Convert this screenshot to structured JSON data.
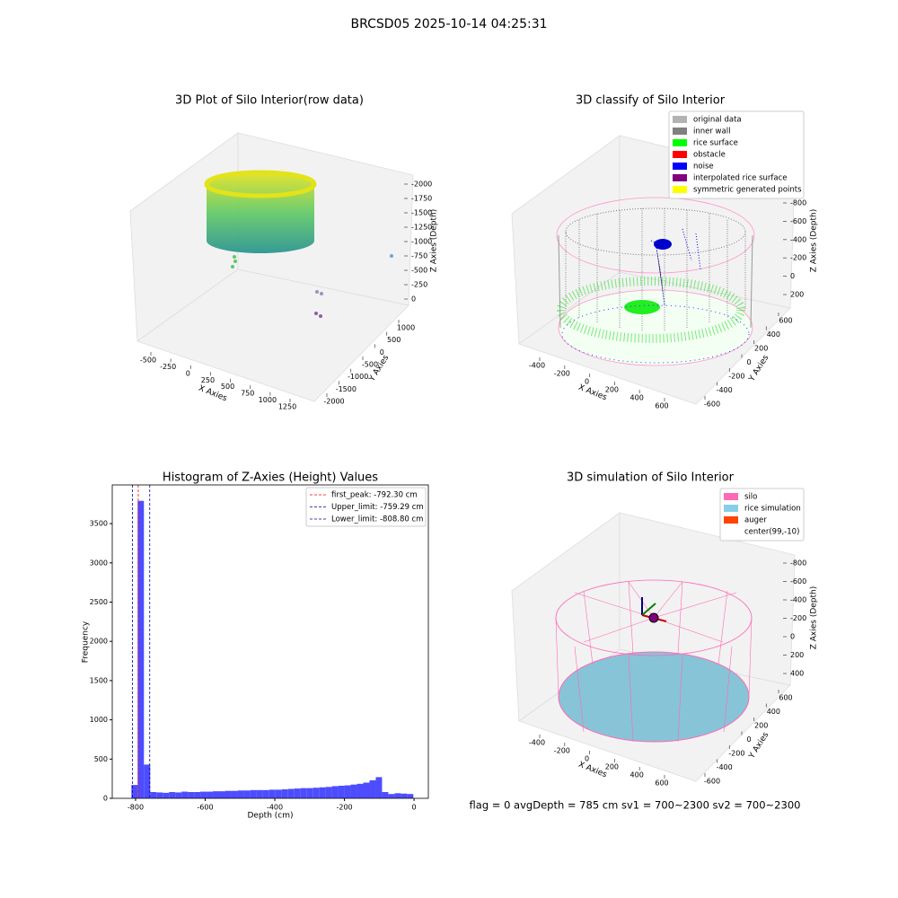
{
  "title": "BRCSD05 2025-10-14 04:25:31",
  "footer": "flag = 0     avgDepth = 785 cm  sv1 = 700~2300  sv2 = 700~2300",
  "chart_data": [
    {
      "type": "scatter3d",
      "title": "3D Plot of Silo Interior(row data)",
      "xlabel": "X Axies",
      "ylabel": "Y Axies",
      "zlabel": "Z Axies (Depth)",
      "xticks": [
        -500,
        -250,
        0,
        250,
        500,
        750,
        1000,
        1250
      ],
      "yticks": [
        -2000,
        -1500,
        -1000,
        -500,
        0,
        500,
        1000
      ],
      "zticks": [
        -2000,
        -1750,
        -1500,
        -1250,
        -1000,
        -750,
        -500,
        -250,
        0
      ]
    },
    {
      "type": "scatter3d",
      "title": "3D classify of Silo Interior",
      "xlabel": "X Axies",
      "ylabel": "Y Axies",
      "zlabel": "Z Axies (Depth)",
      "xticks": [
        -400,
        -200,
        0,
        200,
        400,
        600
      ],
      "yticks": [
        -600,
        -400,
        -200,
        0,
        200,
        400,
        600
      ],
      "zticks": [
        -800,
        -600,
        -400,
        -200,
        0,
        200
      ],
      "legend": [
        {
          "name": "original data",
          "color": "#b3b3b3"
        },
        {
          "name": "inner wall",
          "color": "#808080"
        },
        {
          "name": "rice surface",
          "color": "#00ff00"
        },
        {
          "name": "obstacle",
          "color": "#ff0000"
        },
        {
          "name": "noise",
          "color": "#0000ff"
        },
        {
          "name": "interpolated rice surface",
          "color": "#800080"
        },
        {
          "name": "symmetric generated points",
          "color": "#ffff00"
        }
      ]
    },
    {
      "type": "histogram",
      "title": "Histogram of Z-Axies (Height) Values",
      "xlabel": "Depth (cm)",
      "ylabel": "Frequency",
      "color": "#4d4dff",
      "bins": [
        -812,
        -794,
        -776,
        -758,
        -740,
        -722,
        -704,
        -686,
        -668,
        -650,
        -632,
        -614,
        -596,
        -578,
        -560,
        -542,
        -524,
        -506,
        -488,
        -470,
        -452,
        -434,
        -416,
        -398,
        -380,
        -362,
        -344,
        -326,
        -308,
        -290,
        -272,
        -254,
        -236,
        -218,
        -200,
        -182,
        -164,
        -146,
        -128,
        -110,
        -92,
        -74,
        -56,
        -38,
        -20,
        -2
      ],
      "values": [
        170,
        3790,
        430,
        80,
        75,
        70,
        80,
        75,
        85,
        80,
        80,
        85,
        85,
        90,
        90,
        95,
        95,
        100,
        100,
        105,
        105,
        105,
        110,
        110,
        115,
        120,
        125,
        130,
        130,
        135,
        140,
        145,
        155,
        160,
        165,
        175,
        185,
        200,
        230,
        270,
        80,
        55,
        65,
        60,
        55
      ],
      "xlim": [
        -867,
        41
      ],
      "ylim": [
        0,
        3993
      ],
      "xticks": [
        -800,
        -600,
        -400,
        -200,
        0
      ],
      "yticks": [
        0,
        500,
        1000,
        1500,
        2000,
        2500,
        3000,
        3500
      ],
      "lines": [
        {
          "name": "first_peak: -792.30 cm",
          "value": -792.3,
          "color": "#ff0000"
        },
        {
          "name": "Upper_limit: -759.29 cm",
          "value": -759.29,
          "color": "#0000aa"
        },
        {
          "name": "Lower_limit: -808.80 cm",
          "value": -808.8,
          "color": "#0000aa"
        }
      ]
    },
    {
      "type": "surface3d",
      "title": "3D simulation of Silo Interior",
      "xlabel": "X Axies",
      "ylabel": "Y Axies",
      "zlabel": "Z Axies (Depth)",
      "xticks": [
        -400,
        -200,
        0,
        200,
        400,
        600
      ],
      "yticks": [
        -600,
        -400,
        -200,
        0,
        200,
        400,
        600
      ],
      "zticks": [
        -800,
        -600,
        -400,
        -200,
        0,
        200,
        400
      ],
      "legend": [
        {
          "name": "silo",
          "color": "#ff69b4"
        },
        {
          "name": "rice simulation",
          "color": "#87ceeb"
        },
        {
          "name": "auger",
          "color": "#ff4500"
        },
        {
          "name": "center(99,-10)",
          "color": "#ffffff"
        }
      ]
    }
  ]
}
